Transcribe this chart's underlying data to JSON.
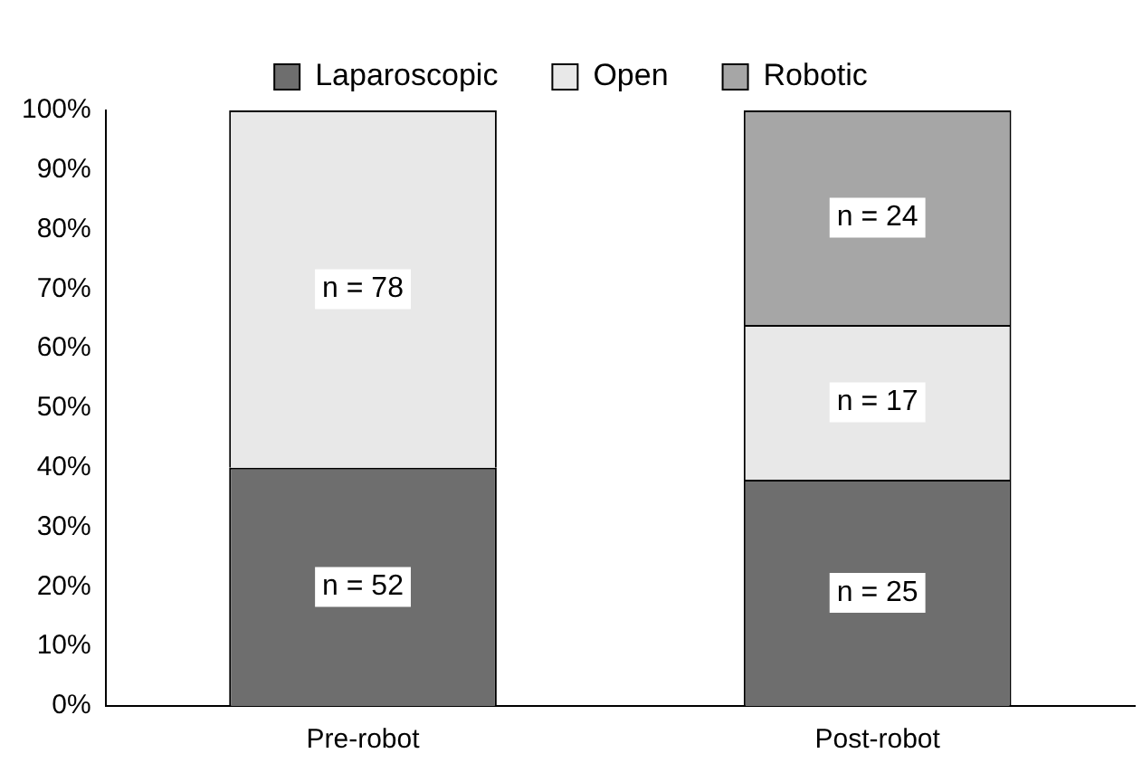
{
  "chart_data": {
    "type": "bar",
    "stacked": true,
    "categories": [
      "Pre-robot",
      "Post-robot"
    ],
    "series": [
      {
        "name": "Laparoscopic",
        "color": "#6e6e6e",
        "values": [
          40,
          38
        ]
      },
      {
        "name": "Open",
        "color": "#e8e8e8",
        "values": [
          60,
          26
        ]
      },
      {
        "name": "Robotic",
        "color": "#a6a6a6",
        "values": [
          null,
          36
        ]
      }
    ],
    "annotations": [
      "n = 52",
      "n = 25",
      "n = 78",
      "n = 17",
      "n = 24"
    ],
    "ylim": [
      0,
      100
    ],
    "yticks": [
      {
        "value": 0,
        "label": "0%"
      },
      {
        "value": 10,
        "label": "10%"
      },
      {
        "value": 20,
        "label": "20%"
      },
      {
        "value": 30,
        "label": "30%"
      },
      {
        "value": 40,
        "label": "40%"
      },
      {
        "value": 50,
        "label": "50%"
      },
      {
        "value": 60,
        "label": "60%"
      },
      {
        "value": 70,
        "label": "70%"
      },
      {
        "value": 80,
        "label": "80%"
      },
      {
        "value": 90,
        "label": "90%"
      },
      {
        "value": 100,
        "label": "100%"
      }
    ],
    "grid": false,
    "legend": "top"
  }
}
